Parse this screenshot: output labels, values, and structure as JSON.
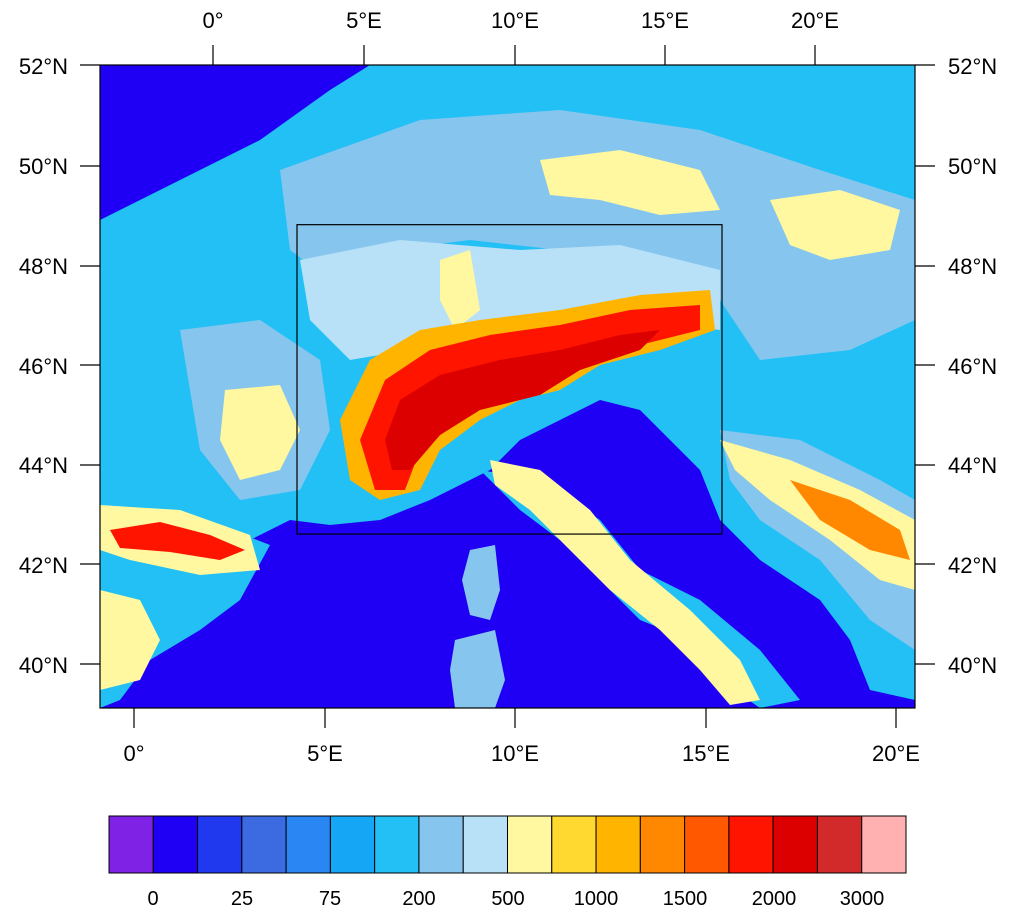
{
  "map": {
    "top_lon_labels": [
      "0°",
      "5°E",
      "10°E",
      "15°E",
      "20°E"
    ],
    "bottom_lon_labels": [
      "0°",
      "5°E",
      "10°E",
      "15°E",
      "20°E"
    ],
    "left_lat_labels": [
      "52°N",
      "50°N",
      "48°N",
      "46°N",
      "44°N",
      "42°N",
      "40°N"
    ],
    "right_lat_labels": [
      "52°N",
      "50°N",
      "48°N",
      "46°N",
      "44°N",
      "42°N",
      "40°N"
    ],
    "inner_domain_box": {
      "lon_range": [
        4.3,
        15.5
      ],
      "lat_range": [
        42.6,
        48.8
      ]
    }
  },
  "colorbar": {
    "colors": [
      "#8022e6",
      "#2000f5",
      "#2038ee",
      "#3c6ae0",
      "#2a86f2",
      "#16a6f6",
      "#22c0f5",
      "#86c6ee",
      "#b8e0f6",
      "#fff8a0",
      "#ffd830",
      "#ffb400",
      "#ff8800",
      "#ff5800",
      "#ff1400",
      "#dc0000",
      "#d22a2a",
      "#ffb0b0"
    ],
    "tick_labels": [
      "0",
      "25",
      "75",
      "200",
      "500",
      "1000",
      "1500",
      "2000",
      "3000"
    ]
  },
  "colors": {
    "sea": "#2000f5",
    "lowland": "#22c0f5",
    "hills": "#86c6ee",
    "upland": "#b8e0f6",
    "mountain_low": "#fff8a0",
    "mountain_mid": "#ffb400",
    "mountain_high": "#ff1400",
    "summit": "#dc0000"
  }
}
